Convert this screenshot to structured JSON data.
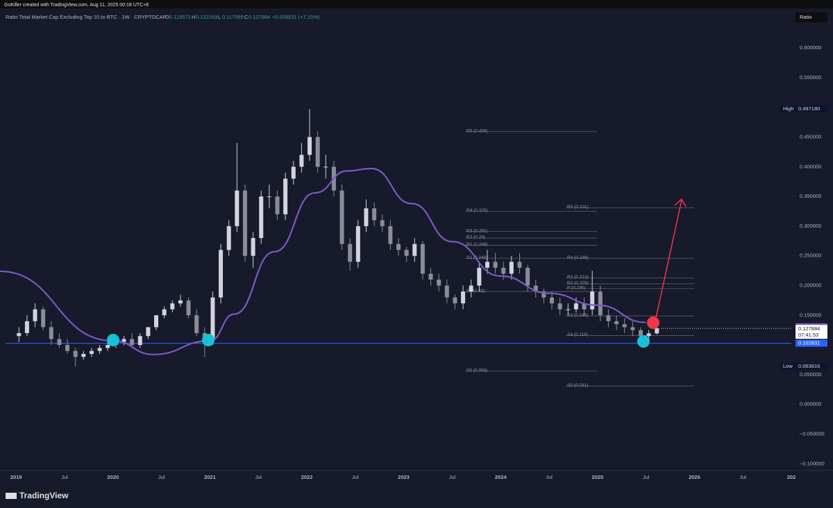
{
  "header": {
    "credit": "GoKiller created with TradingView.com, Aug 11, 2025 00:18 UTC+8",
    "scale_button": "Ratio",
    "brand": "TradingView"
  },
  "chart_data": {
    "type": "candlestick",
    "legend": {
      "name": "Ratio Total Market Cap Excluding Top 10 to BTC · 1W · CRYPTOCAP",
      "ohlc": [
        {
          "key": "O",
          "value": 0.119571
        },
        {
          "key": "H",
          "value": 0.132163
        },
        {
          "key": "L",
          "value": 0.117569
        },
        {
          "key": "C",
          "value": 0.127884
        }
      ],
      "change": "+0.008531 (+7.15%)"
    },
    "up_color": "#d1d4dc",
    "down_color": "#8a8d96",
    "x": [
      "2019-01",
      "2019-02",
      "2019-03",
      "2019-04",
      "2019-05",
      "2019-06",
      "2019-07",
      "2019-08",
      "2019-09",
      "2019-10",
      "2019-11",
      "2019-12",
      "2020-01",
      "2020-02",
      "2020-03",
      "2020-04",
      "2020-05",
      "2020-06",
      "2020-07",
      "2020-08",
      "2020-09",
      "2020-10",
      "2020-11",
      "2020-12",
      "2021-01",
      "2021-02",
      "2021-03",
      "2021-04",
      "2021-05",
      "2021-06",
      "2021-07",
      "2021-08",
      "2021-09",
      "2021-10",
      "2021-11",
      "2021-12",
      "2022-01",
      "2022-02",
      "2022-03",
      "2022-04",
      "2022-05",
      "2022-06",
      "2022-07",
      "2022-08",
      "2022-09",
      "2022-10",
      "2022-11",
      "2022-12",
      "2023-01",
      "2023-02",
      "2023-03",
      "2023-04",
      "2023-05",
      "2023-06",
      "2023-07",
      "2023-08",
      "2023-09",
      "2023-10",
      "2023-11",
      "2023-12",
      "2024-01",
      "2024-02",
      "2024-03",
      "2024-04",
      "2024-05",
      "2024-06",
      "2024-07",
      "2024-08",
      "2024-09",
      "2024-10",
      "2024-11",
      "2024-12",
      "2025-01",
      "2025-02",
      "2025-03",
      "2025-04",
      "2025-05",
      "2025-06",
      "2025-07",
      "2025-08"
    ],
    "open": [
      0.115,
      0.12,
      0.14,
      0.16,
      0.13,
      0.11,
      0.1,
      0.09,
      0.08,
      0.085,
      0.09,
      0.095,
      0.1,
      0.105,
      0.11,
      0.1,
      0.115,
      0.13,
      0.15,
      0.16,
      0.17,
      0.175,
      0.15,
      0.12,
      0.11,
      0.18,
      0.26,
      0.3,
      0.36,
      0.25,
      0.28,
      0.35,
      0.35,
      0.32,
      0.38,
      0.4,
      0.42,
      0.45,
      0.4,
      0.4,
      0.36,
      0.27,
      0.24,
      0.3,
      0.33,
      0.31,
      0.3,
      0.27,
      0.26,
      0.25,
      0.27,
      0.22,
      0.21,
      0.2,
      0.18,
      0.17,
      0.19,
      0.2,
      0.23,
      0.24,
      0.23,
      0.22,
      0.24,
      0.23,
      0.2,
      0.19,
      0.18,
      0.17,
      0.16,
      0.16,
      0.17,
      0.16,
      0.19,
      0.15,
      0.14,
      0.135,
      0.13,
      0.125,
      0.115,
      0.119571
    ],
    "high": [
      0.13,
      0.15,
      0.17,
      0.165,
      0.14,
      0.12,
      0.11,
      0.095,
      0.09,
      0.095,
      0.1,
      0.105,
      0.11,
      0.115,
      0.12,
      0.12,
      0.13,
      0.15,
      0.165,
      0.175,
      0.185,
      0.18,
      0.16,
      0.13,
      0.19,
      0.27,
      0.31,
      0.44,
      0.37,
      0.29,
      0.36,
      0.37,
      0.36,
      0.39,
      0.41,
      0.44,
      0.49718,
      0.46,
      0.42,
      0.41,
      0.37,
      0.28,
      0.31,
      0.345,
      0.34,
      0.32,
      0.31,
      0.28,
      0.265,
      0.28,
      0.275,
      0.23,
      0.22,
      0.21,
      0.185,
      0.2,
      0.21,
      0.24,
      0.26,
      0.255,
      0.24,
      0.25,
      0.255,
      0.235,
      0.21,
      0.195,
      0.19,
      0.18,
      0.17,
      0.18,
      0.18,
      0.225,
      0.2,
      0.16,
      0.15,
      0.145,
      0.14,
      0.13,
      0.125,
      0.132163
    ],
    "low": [
      0.105,
      0.115,
      0.13,
      0.125,
      0.1,
      0.095,
      0.085,
      0.063916,
      0.075,
      0.08,
      0.085,
      0.09,
      0.095,
      0.1,
      0.095,
      0.095,
      0.11,
      0.125,
      0.145,
      0.155,
      0.165,
      0.145,
      0.115,
      0.08,
      0.1,
      0.17,
      0.25,
      0.29,
      0.24,
      0.23,
      0.27,
      0.33,
      0.31,
      0.31,
      0.37,
      0.39,
      0.41,
      0.39,
      0.38,
      0.35,
      0.26,
      0.225,
      0.23,
      0.29,
      0.3,
      0.29,
      0.26,
      0.25,
      0.24,
      0.24,
      0.21,
      0.2,
      0.19,
      0.17,
      0.16,
      0.16,
      0.18,
      0.19,
      0.22,
      0.22,
      0.21,
      0.21,
      0.22,
      0.19,
      0.18,
      0.17,
      0.16,
      0.15,
      0.15,
      0.155,
      0.15,
      0.15,
      0.14,
      0.13,
      0.125,
      0.12,
      0.115,
      0.105,
      0.11,
      0.117569
    ],
    "close": [
      0.12,
      0.14,
      0.16,
      0.13,
      0.11,
      0.1,
      0.09,
      0.08,
      0.085,
      0.09,
      0.095,
      0.1,
      0.105,
      0.11,
      0.1,
      0.115,
      0.13,
      0.15,
      0.16,
      0.17,
      0.175,
      0.15,
      0.12,
      0.11,
      0.18,
      0.26,
      0.3,
      0.36,
      0.25,
      0.28,
      0.35,
      0.35,
      0.32,
      0.38,
      0.4,
      0.42,
      0.45,
      0.4,
      0.4,
      0.36,
      0.27,
      0.24,
      0.3,
      0.33,
      0.31,
      0.3,
      0.27,
      0.26,
      0.25,
      0.27,
      0.22,
      0.21,
      0.2,
      0.18,
      0.17,
      0.19,
      0.2,
      0.23,
      0.24,
      0.23,
      0.22,
      0.24,
      0.23,
      0.2,
      0.19,
      0.18,
      0.17,
      0.16,
      0.16,
      0.17,
      0.16,
      0.19,
      0.15,
      0.14,
      0.135,
      0.13,
      0.125,
      0.115,
      0.119571,
      0.127884
    ],
    "moving_average": {
      "color": "#7e57c2",
      "x": [
        "2018-11",
        "2020-01",
        "2020-06",
        "2021-01",
        "2021-04",
        "2021-09",
        "2022-02",
        "2022-06",
        "2022-09",
        "2023-02",
        "2023-07",
        "2024-01",
        "2024-07",
        "2025-01",
        "2025-07"
      ],
      "values": [
        0.224,
        0.107,
        0.084,
        0.107,
        0.152,
        0.257,
        0.356,
        0.393,
        0.397,
        0.338,
        0.274,
        0.216,
        0.187,
        0.167,
        0.138
      ],
      "last": 0.130758
    },
    "support": {
      "value": 0.102831,
      "color": "#2962ff"
    },
    "last_price": 0.127884,
    "countdown": "07:41:53",
    "extremes": [
      {
        "name": "High",
        "price": {
          "value": 0.49718,
          "label": "0.497180"
        }
      },
      {
        "name": "Low",
        "price": {
          "value": 0.063916,
          "label": "0.063916"
        }
      }
    ],
    "pivots": [
      {
        "levels": [
          {
            "label": "R5 (0.459)",
            "value": 0.459
          },
          {
            "label": "R4 (0.325)",
            "value": 0.325
          },
          {
            "label": "R3 (0.291)",
            "value": 0.291
          },
          {
            "label": "R2 (0.28)",
            "value": 0.28
          },
          {
            "label": "R1 (0.268)",
            "value": 0.268
          },
          {
            "label": "S1 (0.246)",
            "value": 0.246
          },
          {
            "label": "S4 (0.19)",
            "value": 0.19
          },
          {
            "label": "S5 (0.056)",
            "value": 0.056
          }
        ]
      },
      {
        "levels": [
          {
            "label": "R5 (0.331)",
            "value": 0.331
          },
          {
            "label": "R4 (0.246)",
            "value": 0.246
          },
          {
            "label": "R3 (0.213)",
            "value": 0.213
          },
          {
            "label": "R2 (0.203)",
            "value": 0.203
          },
          {
            "label": "P (0.195)",
            "value": 0.195
          },
          {
            "label": "S3 (0.149)",
            "value": 0.149
          },
          {
            "label": "S4 (0.116)",
            "value": 0.116
          },
          {
            "label": "S5 (0.031)",
            "value": 0.031
          }
        ]
      }
    ],
    "xlim": [
      "2018-11",
      "2027-01"
    ],
    "xticks": [
      {
        "value": "2019-01",
        "label": "2019"
      },
      {
        "value": "2019-07",
        "label": "Jul"
      },
      {
        "value": "2020-01",
        "label": "2020"
      },
      {
        "value": "2020-07",
        "label": "Jul"
      },
      {
        "value": "2021-01",
        "label": "2021"
      },
      {
        "value": "2021-07",
        "label": "Jul"
      },
      {
        "value": "2022-01",
        "label": "2022"
      },
      {
        "value": "2022-07",
        "label": "Jul"
      },
      {
        "value": "2023-01",
        "label": "2023"
      },
      {
        "value": "2023-07",
        "label": "Jul"
      },
      {
        "value": "2024-01",
        "label": "2024"
      },
      {
        "value": "2024-07",
        "label": "Jul"
      },
      {
        "value": "2025-01",
        "label": "2025"
      },
      {
        "value": "2025-07",
        "label": "Jul"
      },
      {
        "value": "2026-01",
        "label": "2026"
      },
      {
        "value": "2026-07",
        "label": "Jul"
      },
      {
        "value": "2027-01",
        "label": "202"
      }
    ],
    "ylim": [
      -0.1113,
      0.6398
    ],
    "yticks": [
      {
        "value": 0.6,
        "label": "0.600000"
      },
      {
        "value": 0.55,
        "label": "0.550000"
      },
      {
        "value": 0.45,
        "label": "0.450000"
      },
      {
        "value": 0.4,
        "label": "0.400000"
      },
      {
        "value": 0.35,
        "label": "0.350000"
      },
      {
        "value": 0.3,
        "label": "0.300000"
      },
      {
        "value": 0.25,
        "label": "0.250000"
      },
      {
        "value": 0.2,
        "label": "0.200000"
      },
      {
        "value": 0.15,
        "label": "0.150000"
      },
      {
        "value": 0.05,
        "label": "0.050000"
      },
      {
        "value": 0,
        "label": "0.000000"
      },
      {
        "value": -0.05,
        "label": "−0.050000"
      },
      {
        "value": -0.1,
        "label": "−0.100000"
      }
    ]
  }
}
